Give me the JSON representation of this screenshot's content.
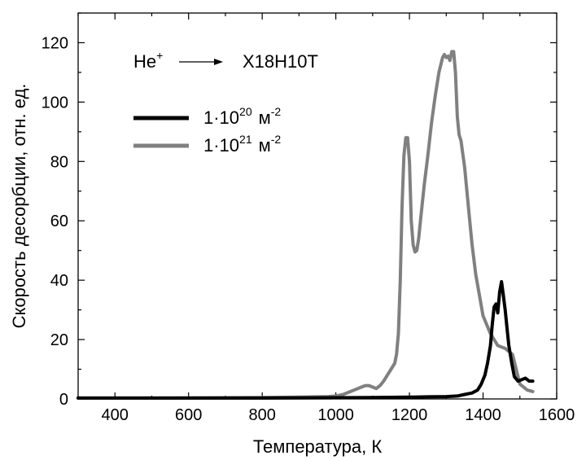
{
  "chart_data": {
    "type": "line",
    "title": "",
    "xlabel": "Температура, К",
    "ylabel": "Скорость десорбции, отн. ед.",
    "xlim": [
      300,
      1600
    ],
    "ylim": [
      0,
      130
    ],
    "xticks": [
      400,
      600,
      800,
      1000,
      1200,
      1400,
      1600
    ],
    "yticks": [
      0,
      20,
      40,
      60,
      80,
      100,
      120
    ],
    "grid": false,
    "legend_position": "top-left",
    "annotation": {
      "ion": "He",
      "ion_sup": "+",
      "target": "Х18Н10Т"
    },
    "series": [
      {
        "name": "1·10²⁰ м⁻²",
        "legend_main": "1·10",
        "legend_exp": "20",
        "legend_unit": "м",
        "legend_unit_exp": "-2",
        "color": "#000000",
        "x": [
          300,
          500,
          800,
          1000,
          1100,
          1200,
          1250,
          1300,
          1330,
          1350,
          1370,
          1385,
          1395,
          1405,
          1412,
          1420,
          1425,
          1430,
          1435,
          1440,
          1445,
          1450,
          1455,
          1460,
          1465,
          1470,
          1478,
          1485,
          1495,
          1505,
          1515,
          1525,
          1535
        ],
        "y": [
          0.3,
          0.3,
          0.3,
          0.4,
          0.5,
          0.6,
          0.7,
          0.8,
          1.0,
          1.5,
          2.0,
          3.0,
          5.0,
          8.0,
          12.0,
          18.0,
          25.0,
          31.0,
          32.0,
          29.0,
          36.0,
          39.5,
          35.0,
          30.0,
          24.0,
          18.0,
          12.0,
          7.5,
          6.0,
          6.5,
          7.0,
          6.0,
          6.0
        ]
      },
      {
        "name": "1·10²¹ м⁻²",
        "legend_main": "1·10",
        "legend_exp": "21",
        "legend_unit": "м",
        "legend_unit_exp": "-2",
        "color": "#808080",
        "x": [
          300,
          500,
          700,
          800,
          900,
          980,
          1000,
          1020,
          1040,
          1060,
          1070,
          1080,
          1090,
          1100,
          1110,
          1120,
          1130,
          1140,
          1150,
          1160,
          1165,
          1170,
          1175,
          1180,
          1185,
          1190,
          1195,
          1200,
          1205,
          1210,
          1215,
          1220,
          1225,
          1230,
          1240,
          1250,
          1260,
          1270,
          1280,
          1290,
          1295,
          1300,
          1305,
          1310,
          1315,
          1320,
          1325,
          1330,
          1335,
          1340,
          1350,
          1360,
          1370,
          1380,
          1390,
          1400,
          1420,
          1440,
          1460,
          1480,
          1500,
          1520,
          1535
        ],
        "y": [
          0.3,
          0.3,
          0.4,
          0.5,
          0.6,
          0.8,
          1.0,
          1.5,
          2.5,
          3.5,
          4.0,
          4.5,
          4.5,
          4.0,
          3.5,
          4.5,
          6.0,
          8.0,
          10.0,
          12.0,
          15.0,
          22.0,
          40.0,
          65.0,
          82.0,
          88.0,
          88.0,
          80.0,
          60.0,
          52.0,
          49.5,
          50.0,
          54.0,
          60.0,
          72.0,
          82.0,
          93.0,
          102.0,
          110.0,
          115.0,
          116.0,
          115.0,
          115.5,
          114.0,
          117.0,
          117.0,
          110.0,
          95.0,
          89.0,
          87.0,
          78.0,
          65.0,
          52.0,
          42.0,
          35.0,
          28.0,
          22.0,
          18.0,
          17.0,
          15.0,
          5.0,
          3.0,
          2.5
        ]
      }
    ]
  }
}
